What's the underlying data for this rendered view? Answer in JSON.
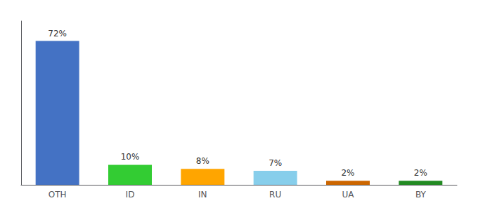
{
  "chart_data": {
    "type": "bar",
    "categories": [
      "OTH",
      "ID",
      "IN",
      "RU",
      "UA",
      "BY"
    ],
    "values": [
      72,
      10,
      8,
      7,
      2,
      2
    ],
    "value_labels": [
      "72%",
      "10%",
      "8%",
      "7%",
      "2%",
      "2%"
    ],
    "colors": [
      "#4472C4",
      "#33CC33",
      "#FFA500",
      "#87CEEB",
      "#CC6600",
      "#228B22"
    ],
    "ylim": [
      0,
      82
    ],
    "data_labels": true,
    "tick_labels": "x",
    "grid": false
  }
}
